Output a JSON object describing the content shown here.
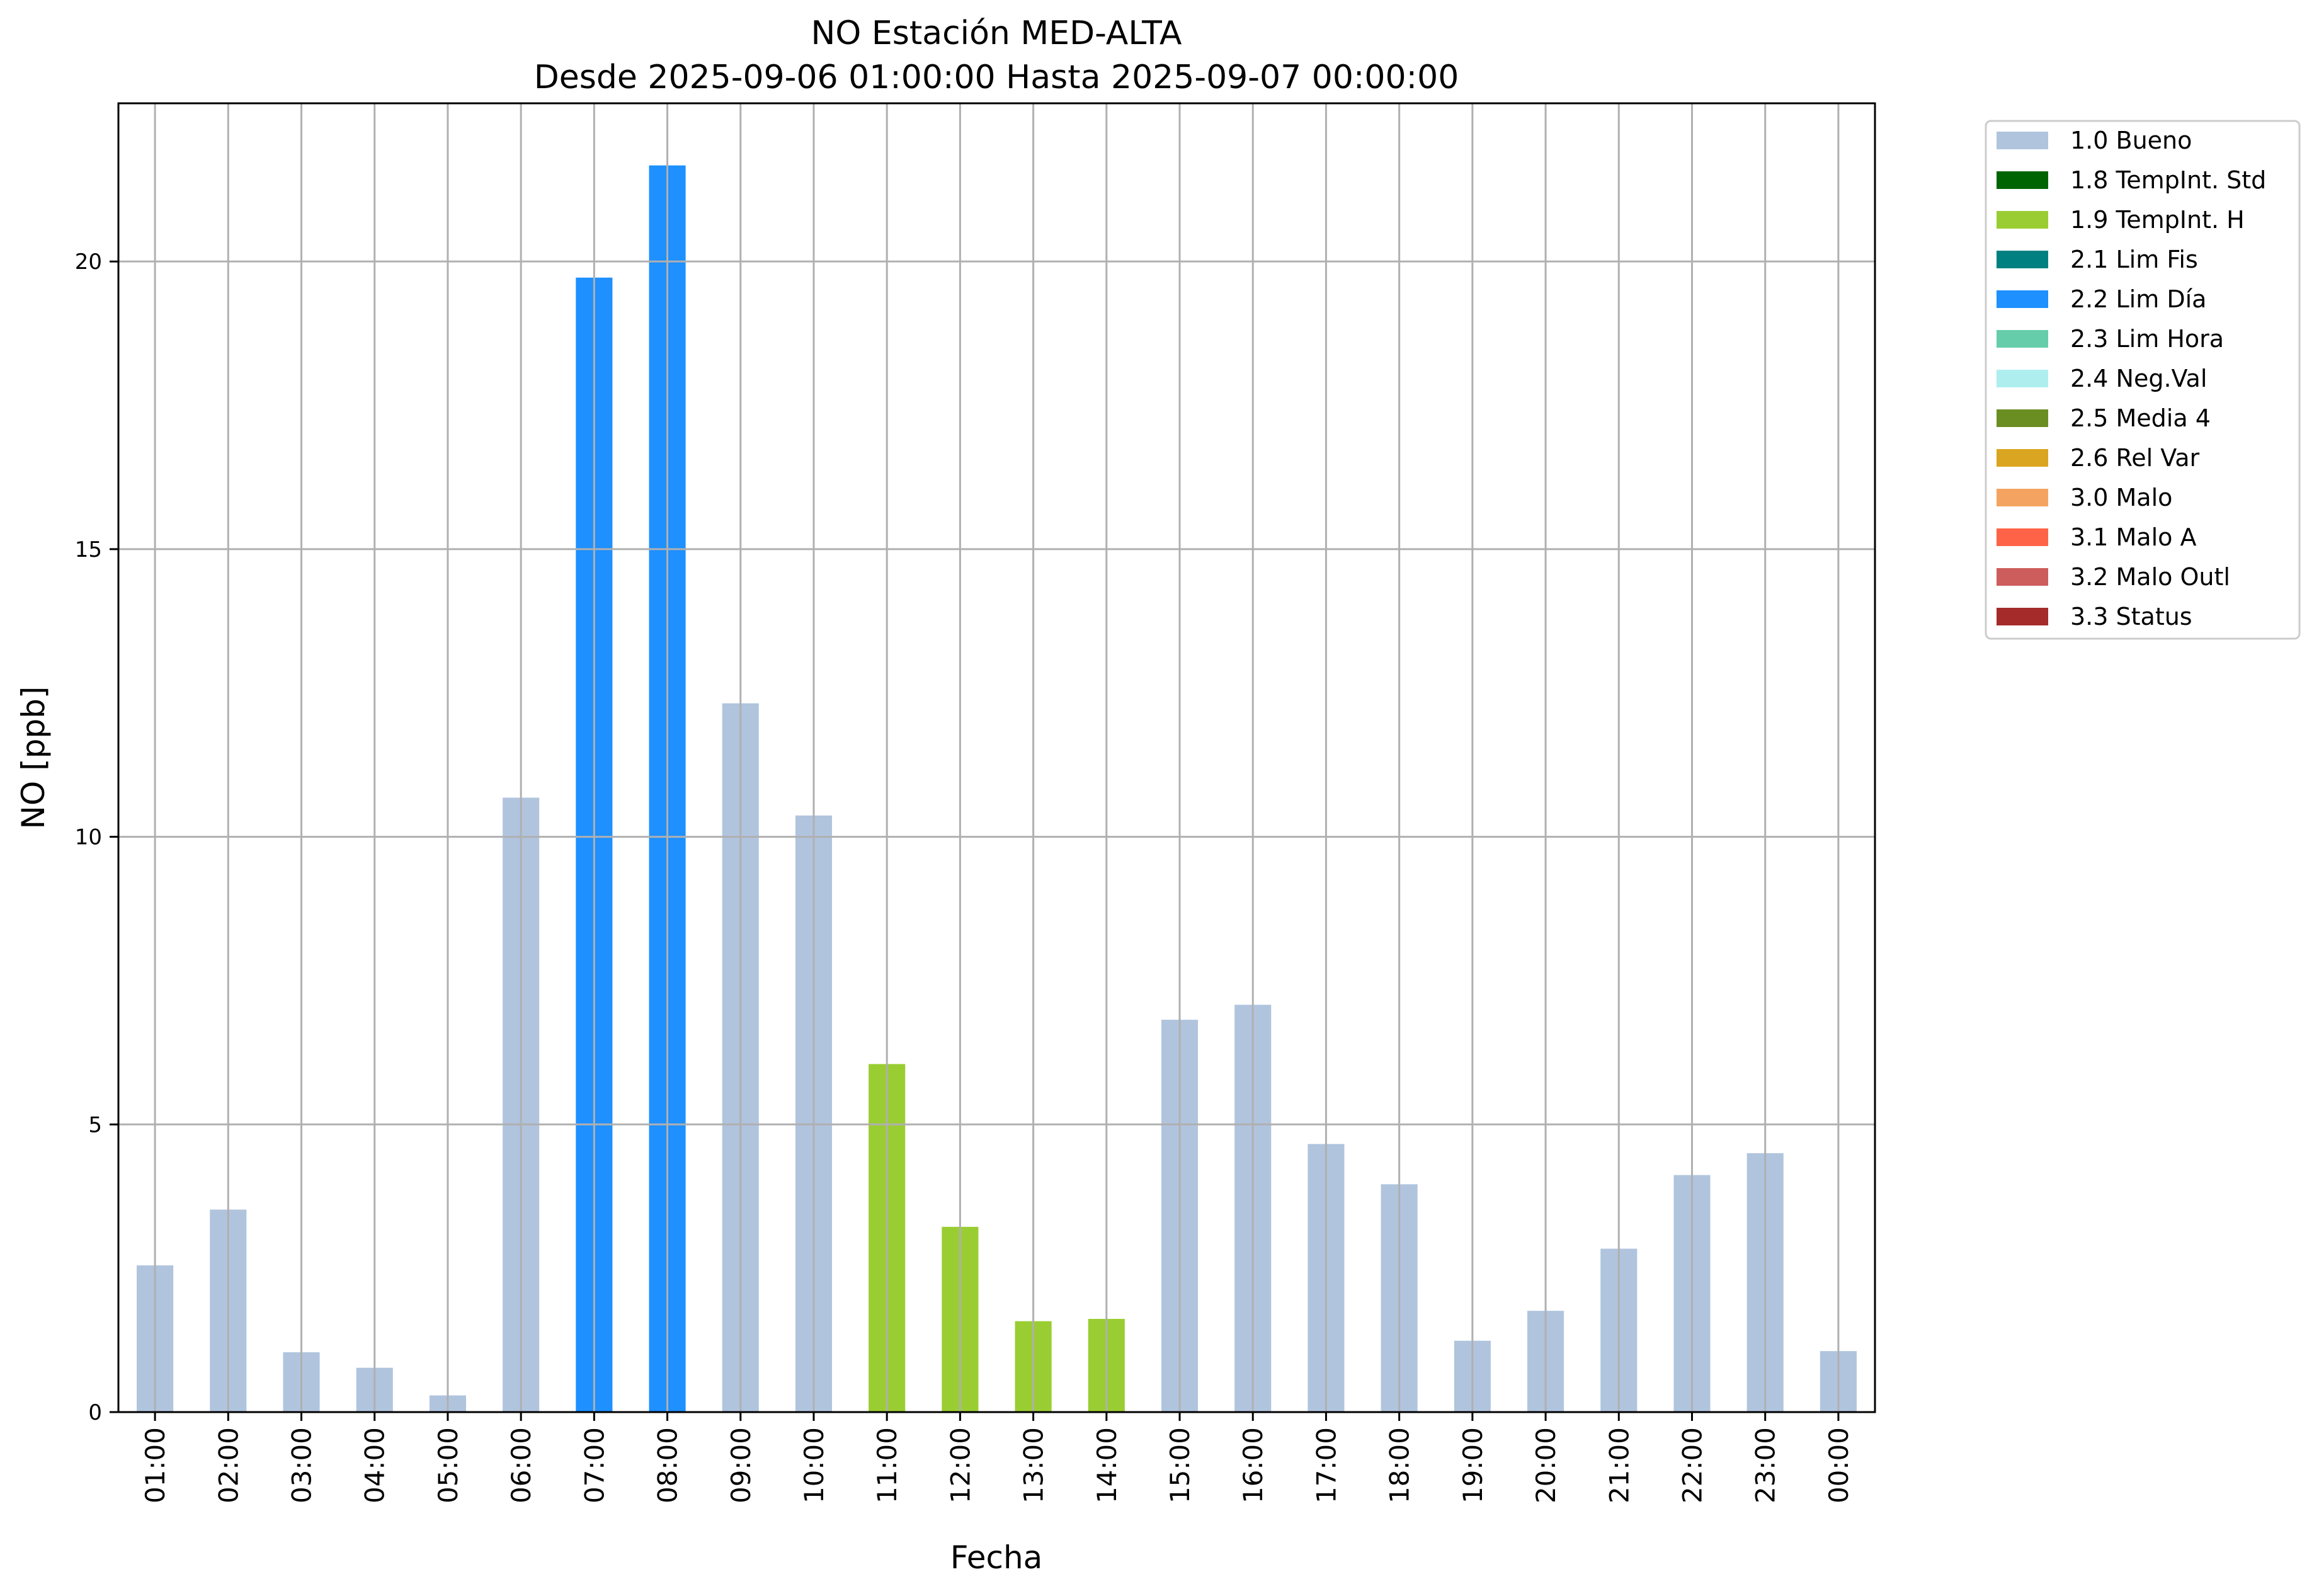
{
  "chart_data": {
    "type": "bar",
    "title": "NO Estación MED-ALTA",
    "subtitle": "Desde 2025-09-06 01:00:00 Hasta 2025-09-07 00:00:00",
    "xlabel": "Fecha",
    "ylabel": "NO [ppb]",
    "ylim": [
      0,
      22.75
    ],
    "yticks": [
      0,
      5,
      10,
      15,
      20
    ],
    "grid": true,
    "legend_position": "outside-top-right",
    "categories": [
      "01:00",
      "02:00",
      "03:00",
      "04:00",
      "05:00",
      "06:00",
      "07:00",
      "08:00",
      "09:00",
      "10:00",
      "11:00",
      "12:00",
      "13:00",
      "14:00",
      "15:00",
      "16:00",
      "17:00",
      "18:00",
      "19:00",
      "20:00",
      "21:00",
      "22:00",
      "23:00",
      "00:00"
    ],
    "values": [
      2.55,
      3.52,
      1.04,
      0.77,
      0.29,
      10.68,
      19.72,
      21.67,
      12.32,
      10.37,
      6.05,
      3.22,
      1.58,
      1.62,
      6.82,
      7.08,
      4.66,
      3.96,
      1.24,
      1.76,
      2.84,
      4.12,
      4.5,
      1.06
    ],
    "flags": [
      "1.0 Bueno",
      "1.0 Bueno",
      "1.0 Bueno",
      "1.0 Bueno",
      "1.0 Bueno",
      "1.0 Bueno",
      "2.2 Lim Día",
      "2.2 Lim Día",
      "1.0 Bueno",
      "1.0 Bueno",
      "1.9 TempInt. H",
      "1.9 TempInt. H",
      "1.9 TempInt. H",
      "1.9 TempInt. H",
      "1.0 Bueno",
      "1.0 Bueno",
      "1.0 Bueno",
      "1.0 Bueno",
      "1.0 Bueno",
      "1.0 Bueno",
      "1.0 Bueno",
      "1.0 Bueno",
      "1.0 Bueno",
      "1.0 Bueno"
    ],
    "legend": [
      {
        "label": "1.0 Bueno",
        "color": "#b0c4de"
      },
      {
        "label": "1.8 TempInt. Std",
        "color": "#006400"
      },
      {
        "label": "1.9 TempInt. H",
        "color": "#9acd32"
      },
      {
        "label": "2.1 Lim Fis",
        "color": "#008080"
      },
      {
        "label": "2.2 Lim Día",
        "color": "#1e90ff"
      },
      {
        "label": "2.3 Lim Hora",
        "color": "#66cdaa"
      },
      {
        "label": "2.4 Neg.Val",
        "color": "#afeeee"
      },
      {
        "label": "2.5 Media 4",
        "color": "#6b8e23"
      },
      {
        "label": "2.6 Rel Var",
        "color": "#daa520"
      },
      {
        "label": "3.0 Malo",
        "color": "#f4a460"
      },
      {
        "label": "3.1 Malo A",
        "color": "#ff6347"
      },
      {
        "label": "3.2 Malo Outl",
        "color": "#cd5c5c"
      },
      {
        "label": "3.3 Status",
        "color": "#a52a2a"
      }
    ]
  }
}
